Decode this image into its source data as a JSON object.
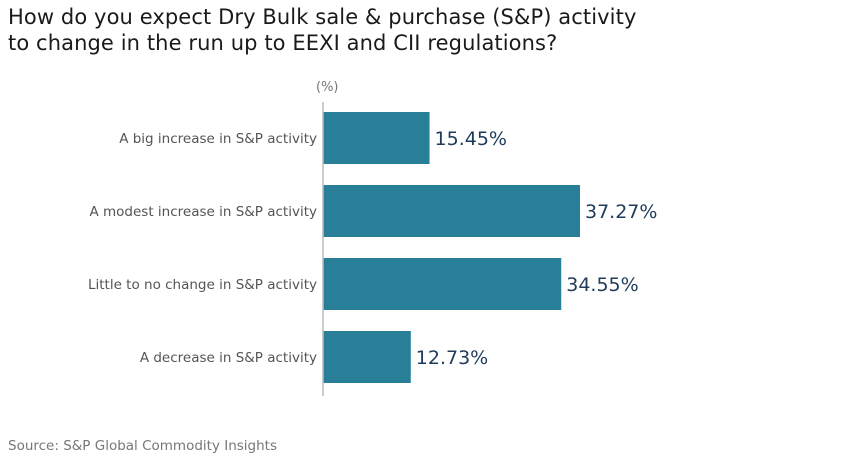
{
  "chart_data": {
    "type": "bar",
    "orientation": "horizontal",
    "title": "How do you expect Dry Bulk sale & purchase (S&P) activity to change in the run up to EEXI and CII regulations?",
    "title_lines": [
      "How do you expect Dry Bulk sale & purchase (S&P) activity",
      "to change in the run up to EEXI and CII regulations?"
    ],
    "unit_label": "(%)",
    "categories": [
      "A big increase in S&P activity",
      "A modest increase in S&P activity",
      "Little to no change in S&P activity",
      "A decrease in S&P activity"
    ],
    "values": [
      15.45,
      37.27,
      34.55,
      12.73
    ],
    "data_labels": [
      "15.45%",
      "37.27%",
      "34.55%",
      "12.73%"
    ],
    "xlim": [
      0,
      40
    ],
    "grid": false,
    "bar_color": "#2a7f98",
    "label_color": "#1f3b5c"
  },
  "source": "Source: S&P Global Commodity Insights"
}
